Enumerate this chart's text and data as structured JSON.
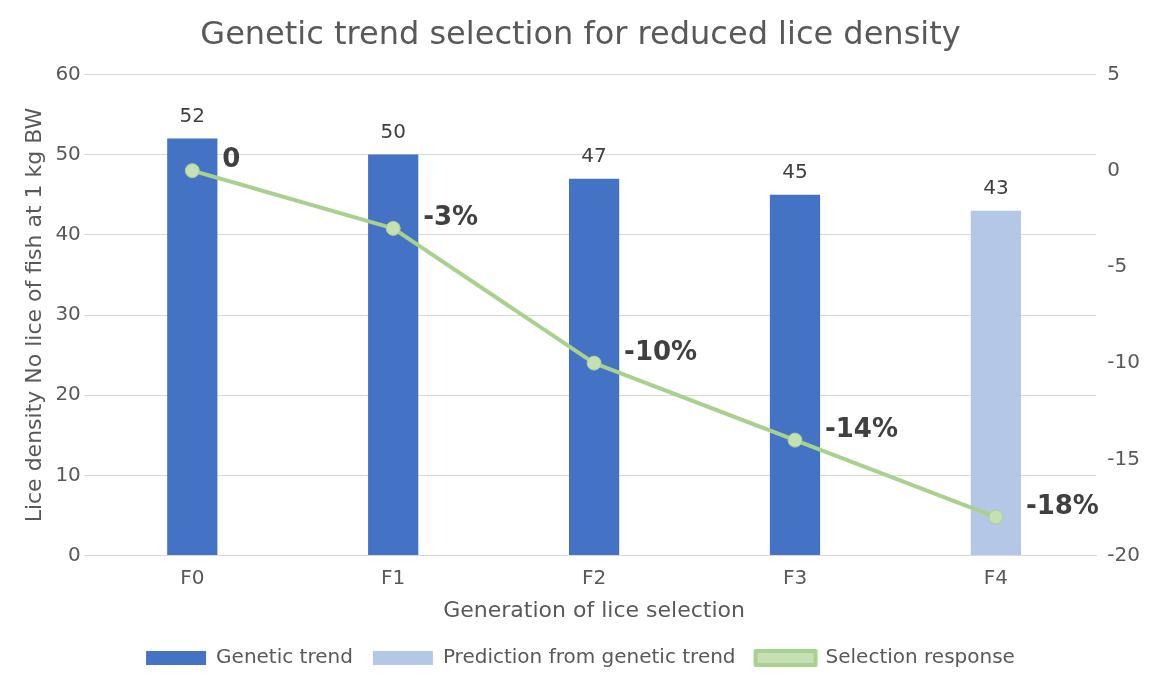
{
  "chart_data": {
    "type": "bar",
    "title": "Genetic trend selection for reduced lice density",
    "xlabel": "Generation of lice selection",
    "ylabel": "Lice density No lice of fish at 1 kg BW",
    "categories": [
      "F0",
      "F1",
      "F2",
      "F3",
      "F4"
    ],
    "series": [
      {
        "name": "Genetic trend",
        "color": "#4472c4",
        "values": [
          52,
          50,
          47,
          45,
          null
        ],
        "value_labels": [
          "52",
          "50",
          "47",
          "45",
          null
        ]
      },
      {
        "name": "Prediction from genetic trend",
        "color": "#b4c7e7",
        "values": [
          null,
          null,
          null,
          null,
          43
        ],
        "value_labels": [
          null,
          null,
          null,
          null,
          "43"
        ]
      },
      {
        "name": "Selection response",
        "type": "line",
        "axis": "y2",
        "color": "#a9d18e",
        "values": [
          0,
          -3,
          -10,
          -14,
          -18
        ],
        "value_labels": [
          "0",
          "-3%",
          "-10%",
          "-14%",
          "-18%"
        ]
      }
    ],
    "ylim": [
      0,
      60
    ],
    "yticks": [
      0,
      10,
      20,
      30,
      40,
      50,
      60
    ],
    "y2lim": [
      -20,
      5
    ],
    "y2ticks": [
      -20,
      -15,
      -10,
      -5,
      0,
      5
    ],
    "grid": "y",
    "legend": "bottom",
    "marker": "circle",
    "line_style": "solid"
  }
}
